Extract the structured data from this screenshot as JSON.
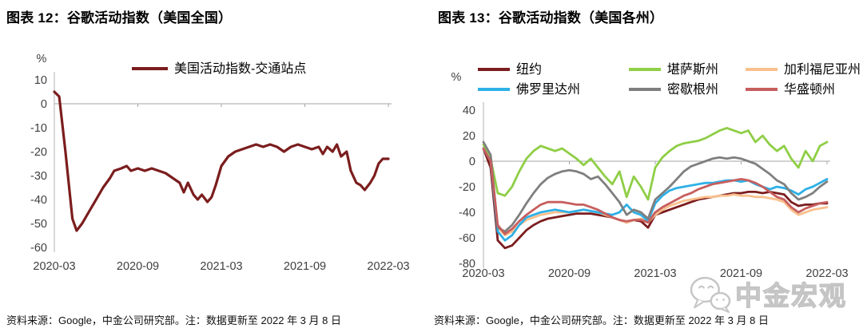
{
  "page": {
    "background": "#ffffff"
  },
  "figures": [
    {
      "title": "图表 12：谷歌活动指数（美国全国）",
      "source_note": "资料来源：Google，中金公司研究部。注：数据更新至 2022 年 3 月 8 日"
    },
    {
      "title": "图表 13：谷歌活动指数（美国各州）",
      "source_note": "资料来源：Google，中金公司研究部。注：数据更新至 2022 年 3 月 8 日"
    }
  ],
  "watermark": {
    "text": "中金宏观",
    "icon": "wechat-chat-bubbles-logo",
    "color": "#c8c8c8"
  },
  "colors": {
    "axis_line": "#bfbfbf",
    "zero_line": "#a6a6a6",
    "tick_text": "#404040",
    "legend_text": "#000000",
    "national_line": "#7B1D1E",
    "new_york": "#7B1D1E",
    "kansas": "#8FCE46",
    "california": "#F9C08D",
    "florida": "#2EB0E6",
    "michigan": "#7F7F7F",
    "washington": "#C75E5E"
  },
  "chart_data": [
    {
      "type": "line",
      "title": "谷歌活动指数（美国全国）",
      "unit": "%",
      "ylim": [
        -60,
        10
      ],
      "yticks": [
        10,
        0,
        -10,
        -20,
        -30,
        -40,
        -50,
        -60
      ],
      "x_axis": {
        "note": "x in months since 2020-03",
        "tick_positions": [
          0,
          6,
          12,
          18,
          24
        ],
        "tick_labels": [
          "2020-03",
          "2020-09",
          "2021-03",
          "2021-09",
          "2022-03"
        ]
      },
      "grid": "zero-line-only",
      "legend_position": "top",
      "x": [
        0,
        0.35,
        0.8,
        1.3,
        1.6,
        2,
        2.5,
        3,
        3.5,
        4,
        4.3,
        4.8,
        5.2,
        5.5,
        6,
        6.5,
        7,
        7.5,
        8,
        8.5,
        9,
        9.3,
        9.6,
        10,
        10.3,
        10.6,
        11,
        11.3,
        11.6,
        12,
        12.5,
        13,
        13.5,
        14,
        14.5,
        15,
        15.5,
        16,
        16.5,
        17,
        17.5,
        18,
        18.5,
        19,
        19.3,
        19.6,
        20,
        20.3,
        20.6,
        21,
        21.3,
        21.7,
        22,
        22.3,
        22.7,
        23,
        23.3,
        23.6,
        24
      ],
      "series": [
        {
          "name": "美国活动指数-交通站点",
          "color": "#7B1D1E",
          "values": [
            5,
            3,
            -20,
            -48,
            -53,
            -50,
            -45,
            -40,
            -35,
            -31,
            -28,
            -27,
            -26,
            -28,
            -27,
            -28,
            -27,
            -28,
            -29,
            -31,
            -33,
            -37,
            -33,
            -38,
            -40,
            -38,
            -41,
            -39,
            -34,
            -26,
            -22,
            -20,
            -19,
            -18,
            -17,
            -18,
            -17,
            -18,
            -20,
            -18,
            -17,
            -18,
            -19,
            -18,
            -21,
            -18,
            -20,
            -17,
            -22,
            -20,
            -28,
            -33,
            -34,
            -36,
            -33,
            -30,
            -25,
            -23,
            -23
          ]
        }
      ]
    },
    {
      "type": "line",
      "title": "谷歌活动指数（美国各州）",
      "unit": "%",
      "ylim": [
        -80,
        40
      ],
      "yticks": [
        40,
        20,
        0,
        -20,
        -40,
        -60,
        -80
      ],
      "x_axis": {
        "note": "x in months since 2020-03, semi-monthly points",
        "tick_positions": [
          0,
          6,
          12,
          18,
          24
        ],
        "tick_labels": [
          "2020-03",
          "2020-09",
          "2021-03",
          "2021-09",
          "2022-03"
        ]
      },
      "grid": "zero-line-only",
      "legend_position": "top",
      "x": [
        0,
        0.5,
        1,
        1.5,
        2,
        2.5,
        3,
        3.5,
        4,
        4.5,
        5,
        5.5,
        6,
        6.5,
        7,
        7.5,
        8,
        8.5,
        9,
        9.5,
        10,
        10.5,
        11,
        11.5,
        12,
        12.5,
        13,
        13.5,
        14,
        14.5,
        15,
        15.5,
        16,
        16.5,
        17,
        17.5,
        18,
        18.5,
        19,
        19.5,
        20,
        20.5,
        21,
        21.5,
        22,
        22.5,
        23,
        23.5,
        24
      ],
      "series": [
        {
          "name": "纽约",
          "color": "#7B1D1E",
          "values": [
            10,
            -5,
            -62,
            -68,
            -66,
            -60,
            -54,
            -50,
            -47,
            -45,
            -44,
            -43,
            -42,
            -41,
            -41,
            -41,
            -42,
            -43,
            -44,
            -46,
            -48,
            -46,
            -47,
            -52,
            -42,
            -40,
            -38,
            -36,
            -34,
            -32,
            -30,
            -29,
            -28,
            -27,
            -26,
            -25,
            -25,
            -24,
            -24,
            -25,
            -24,
            -25,
            -26,
            -32,
            -35,
            -34,
            -34,
            -33,
            -33
          ]
        },
        {
          "name": "堪萨斯州",
          "color": "#8FCE46",
          "values": [
            13,
            2,
            -25,
            -27,
            -20,
            -8,
            2,
            8,
            12,
            10,
            8,
            10,
            6,
            2,
            -3,
            2,
            -5,
            -12,
            -18,
            -8,
            -28,
            -12,
            -20,
            -30,
            -5,
            3,
            8,
            12,
            14,
            15,
            16,
            18,
            21,
            24,
            26,
            24,
            22,
            24,
            15,
            20,
            13,
            8,
            12,
            2,
            -5,
            8,
            0,
            12,
            15
          ]
        },
        {
          "name": "加利福尼亚州",
          "color": "#F9C08D",
          "values": [
            10,
            0,
            -52,
            -58,
            -55,
            -50,
            -46,
            -44,
            -42,
            -41,
            -40,
            -40,
            -40,
            -39,
            -38,
            -39,
            -40,
            -42,
            -44,
            -46,
            -48,
            -46,
            -45,
            -48,
            -42,
            -38,
            -35,
            -33,
            -31,
            -30,
            -29,
            -28,
            -28,
            -27,
            -27,
            -26,
            -27,
            -27,
            -28,
            -28,
            -29,
            -30,
            -32,
            -38,
            -42,
            -40,
            -38,
            -37,
            -36
          ]
        },
        {
          "name": "佛罗里达州",
          "color": "#2EB0E6",
          "values": [
            10,
            0,
            -55,
            -62,
            -58,
            -50,
            -44,
            -42,
            -40,
            -39,
            -38,
            -39,
            -40,
            -39,
            -38,
            -39,
            -40,
            -41,
            -42,
            -40,
            -34,
            -40,
            -42,
            -47,
            -33,
            -27,
            -23,
            -21,
            -20,
            -19,
            -18,
            -17,
            -17,
            -16,
            -15,
            -15,
            -16,
            -15,
            -18,
            -20,
            -22,
            -20,
            -21,
            -23,
            -26,
            -22,
            -20,
            -17,
            -14
          ]
        },
        {
          "name": "密歇根州",
          "color": "#7F7F7F",
          "values": [
            15,
            5,
            -52,
            -55,
            -50,
            -42,
            -33,
            -25,
            -18,
            -13,
            -10,
            -8,
            -7,
            -8,
            -10,
            -14,
            -12,
            -18,
            -25,
            -32,
            -42,
            -38,
            -40,
            -45,
            -30,
            -25,
            -20,
            -14,
            -8,
            -4,
            -2,
            0,
            2,
            3,
            2,
            3,
            2,
            0,
            -2,
            -6,
            -10,
            -15,
            -18,
            -25,
            -30,
            -28,
            -25,
            -20,
            -16
          ]
        },
        {
          "name": "华盛顿州",
          "color": "#C75E5E",
          "values": [
            10,
            0,
            -50,
            -57,
            -53,
            -47,
            -42,
            -38,
            -34,
            -32,
            -32,
            -32,
            -33,
            -34,
            -34,
            -36,
            -38,
            -41,
            -44,
            -46,
            -47,
            -46,
            -46,
            -48,
            -40,
            -36,
            -33,
            -30,
            -27,
            -25,
            -22,
            -20,
            -18,
            -17,
            -16,
            -15,
            -14,
            -15,
            -17,
            -20,
            -24,
            -28,
            -30,
            -36,
            -40,
            -37,
            -35,
            -33,
            -32
          ]
        }
      ]
    }
  ]
}
